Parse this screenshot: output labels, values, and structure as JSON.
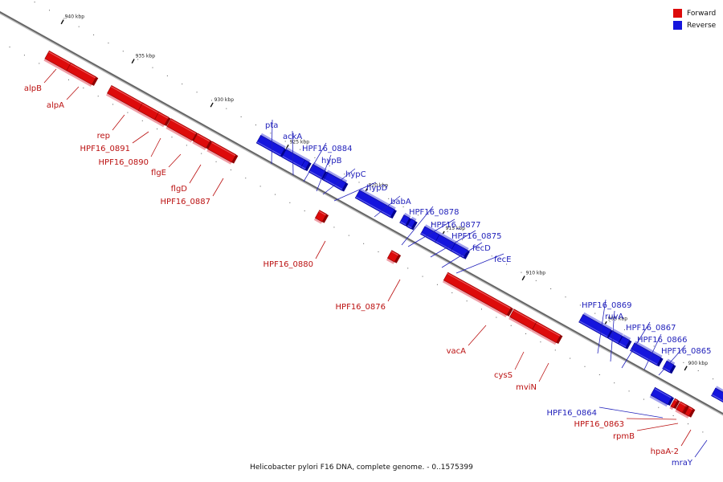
{
  "colors": {
    "forward": "#dd0b0b",
    "forward_side": "#8f0000",
    "forward_shadow": "#f0a0a8",
    "reverse": "#1515dd",
    "reverse_side": "#00008f",
    "reverse_shadow": "#a0a0ee",
    "forward_label": "#bb1111",
    "reverse_label": "#2222bb",
    "track": "#666666"
  },
  "legend": {
    "forward_label": "Forward",
    "reverse_label": "Reverse"
  },
  "caption": "Helicobacter pylori F16 DNA, complete genome. - 0..1575399",
  "scale_labels": [
    "940 kbp",
    "935 kbp",
    "930 kbp",
    "925 kbp",
    "920 kbp",
    "915 kbp",
    "910 kbp",
    "905 kbp",
    "900 kbp"
  ],
  "genes": [
    {
      "name": "alpB",
      "strand": "forward"
    },
    {
      "name": "alpA",
      "strand": "forward"
    },
    {
      "name": "rep",
      "strand": "forward"
    },
    {
      "name": "HPF16_0891",
      "strand": "forward"
    },
    {
      "name": "HPF16_0890",
      "strand": "forward"
    },
    {
      "name": "flgE",
      "strand": "forward"
    },
    {
      "name": "flgD",
      "strand": "forward"
    },
    {
      "name": "HPF16_0887",
      "strand": "forward"
    },
    {
      "name": "pta",
      "strand": "reverse"
    },
    {
      "name": "ackA",
      "strand": "reverse"
    },
    {
      "name": "HPF16_0884",
      "strand": "reverse"
    },
    {
      "name": "hypB",
      "strand": "reverse"
    },
    {
      "name": "hypC",
      "strand": "reverse"
    },
    {
      "name": "hypD",
      "strand": "reverse"
    },
    {
      "name": "babA",
      "strand": "reverse"
    },
    {
      "name": "HPF16_0880",
      "strand": "forward"
    },
    {
      "name": "HPF16_0878",
      "strand": "reverse"
    },
    {
      "name": "HPF16_0877",
      "strand": "reverse"
    },
    {
      "name": "HPF16_0875",
      "strand": "reverse"
    },
    {
      "name": "fecD",
      "strand": "reverse"
    },
    {
      "name": "fecE",
      "strand": "reverse"
    },
    {
      "name": "HPF16_0876",
      "strand": "forward"
    },
    {
      "name": "vacA",
      "strand": "forward"
    },
    {
      "name": "cysS",
      "strand": "forward"
    },
    {
      "name": "mviN",
      "strand": "forward"
    },
    {
      "name": "HPF16_0869",
      "strand": "reverse"
    },
    {
      "name": "ruvA",
      "strand": "reverse"
    },
    {
      "name": "HPF16_0867",
      "strand": "reverse"
    },
    {
      "name": "HPF16_0866",
      "strand": "reverse"
    },
    {
      "name": "HPF16_0865",
      "strand": "reverse"
    },
    {
      "name": "HPF16_0864",
      "strand": "reverse"
    },
    {
      "name": "HPF16_0863",
      "strand": "forward"
    },
    {
      "name": "rpmB",
      "strand": "forward"
    },
    {
      "name": "hpaA-2",
      "strand": "forward"
    },
    {
      "name": "mraY",
      "strand": "reverse"
    }
  ]
}
